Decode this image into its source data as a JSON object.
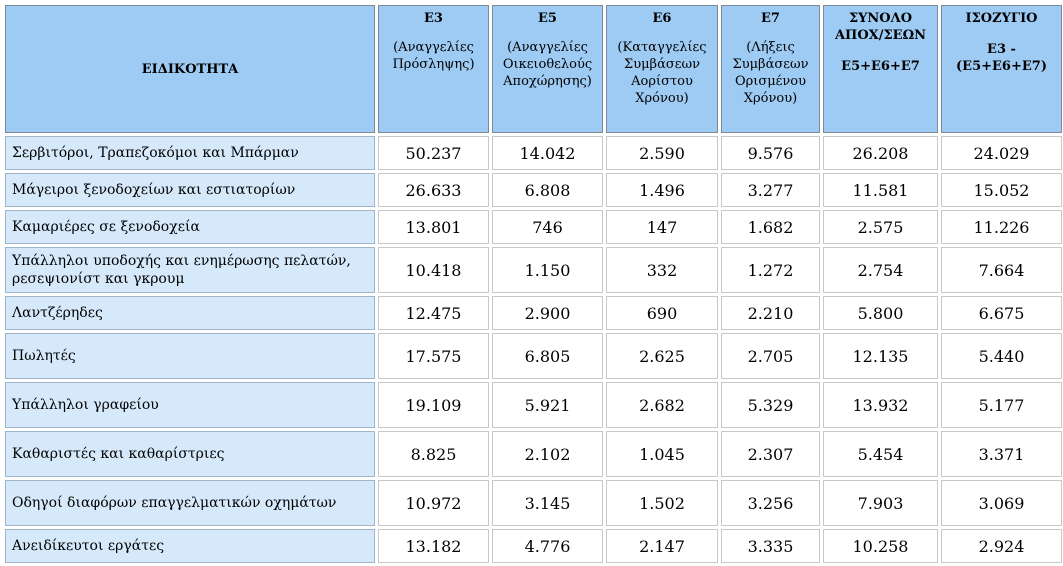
{
  "header": {
    "specialty": "ΕΙΔΙΚΟΤΗΤΑ",
    "columns": [
      {
        "code": "Ε3",
        "desc": "(Αναγγελίες Πρόσληψης)"
      },
      {
        "code": "Ε5",
        "desc": "(Αναγγελίες Οικειοθελούς Αποχώρησης)"
      },
      {
        "code": "Ε6",
        "desc": "(Καταγγελίες Συμβάσεων Αορίστου Χρόνου)"
      },
      {
        "code": "Ε7",
        "desc": "(Λήξεις Συμβάσεων Ορισμένου Χρόνου)"
      },
      {
        "code": "ΣΥΝΟΛΟ ΑΠΟΧ/ΣΕΩΝ",
        "desc": "Ε5+Ε6+Ε7"
      },
      {
        "code": "ΙΣΟΖΥΓΙΟ",
        "desc": "Ε3 - (Ε5+Ε6+Ε7)"
      }
    ]
  },
  "rows": [
    {
      "label": "Σερβιτόροι, Τραπεζοκόμοι και Μπάρμαν",
      "values": [
        "50.237",
        "14.042",
        "2.590",
        "9.576",
        "26.208",
        "24.029"
      ]
    },
    {
      "label": "Μάγειροι ξενοδοχείων και εστιατορίων",
      "values": [
        "26.633",
        "6.808",
        "1.496",
        "3.277",
        "11.581",
        "15.052"
      ]
    },
    {
      "label": "Καμαριέρες σε ξενοδοχεία",
      "values": [
        "13.801",
        "746",
        "147",
        "1.682",
        "2.575",
        "11.226"
      ]
    },
    {
      "label": "Υπάλληλοι υποδοχής και ενημέρωσης πελατών, ρεσεψιονίστ και γκρουμ",
      "values": [
        "10.418",
        "1.150",
        "332",
        "1.272",
        "2.754",
        "7.664"
      ]
    },
    {
      "label": "Λαντζέρηδες",
      "values": [
        "12.475",
        "2.900",
        "690",
        "2.210",
        "5.800",
        "6.675"
      ]
    },
    {
      "label": "Πωλητές",
      "values": [
        "17.575",
        "6.805",
        "2.625",
        "2.705",
        "12.135",
        "5.440"
      ]
    },
    {
      "label": "Υπάλληλοι γραφείου",
      "values": [
        "19.109",
        "5.921",
        "2.682",
        "5.329",
        "13.932",
        "5.177"
      ]
    },
    {
      "label": "Καθαριστές και καθαρίστριες",
      "values": [
        "8.825",
        "2.102",
        "1.045",
        "2.307",
        "5.454",
        "3.371"
      ]
    },
    {
      "label": "Οδηγοί διαφόρων επαγγελματικών οχημάτων",
      "values": [
        "10.972",
        "3.145",
        "1.502",
        "3.256",
        "7.903",
        "3.069"
      ]
    },
    {
      "label": "Ανειδίκευτοι εργάτες",
      "values": [
        "13.182",
        "4.776",
        "2.147",
        "3.335",
        "10.258",
        "2.924"
      ]
    }
  ]
}
